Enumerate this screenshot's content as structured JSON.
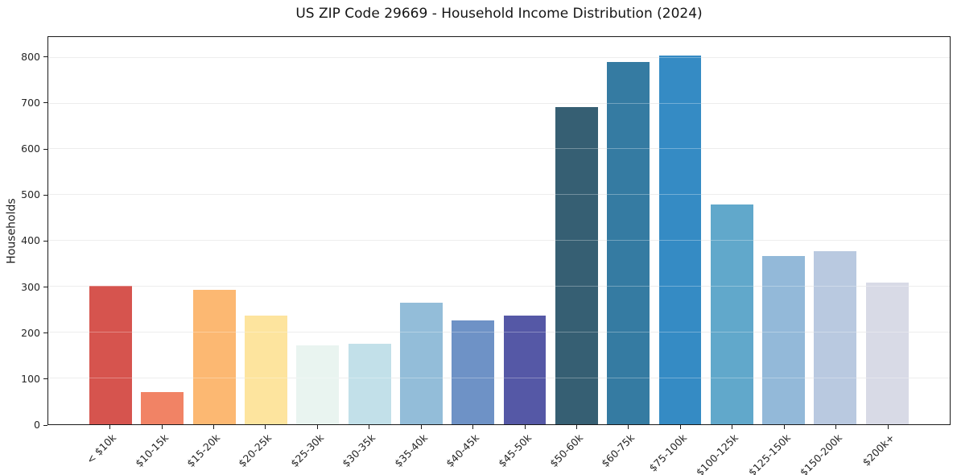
{
  "title": "US ZIP Code 29669 - Household Income Distribution (2024)",
  "colors": {
    "axis": "#1a1a1a",
    "grid": "#e6e6e6",
    "text": "#262626",
    "background": "#ffffff"
  },
  "chart_data": {
    "type": "bar",
    "title": "US ZIP Code 29669 - Household Income Distribution (2024)",
    "xlabel": "",
    "ylabel": "Households",
    "categories": [
      "< $10k",
      "$10-15k",
      "$15-20k",
      "$20-25k",
      "$25-30k",
      "$30-35k",
      "$35-40k",
      "$40-45k",
      "$45-50k",
      "$50-60k",
      "$60-75k",
      "$75-100k",
      "$100-125k",
      "$125-150k",
      "$150-200k",
      "$200k+"
    ],
    "values": [
      302,
      70,
      293,
      237,
      172,
      175,
      265,
      226,
      238,
      693,
      791,
      805,
      479,
      367,
      377,
      310
    ],
    "bar_colors": [
      "#d6544e",
      "#f18365",
      "#fcb872",
      "#fde49e",
      "#e9f4f0",
      "#c2e0e9",
      "#93bdd9",
      "#6e92c6",
      "#5558a6",
      "#365f73",
      "#357ba2",
      "#358bc4",
      "#61a8cb",
      "#93b9d9",
      "#b9c9e0",
      "#d8dae6"
    ],
    "yticks": [
      0,
      100,
      200,
      300,
      400,
      500,
      600,
      700,
      800
    ],
    "ylim": [
      0,
      845
    ],
    "grid": "horizontal",
    "legend": "none",
    "xtick_rotation": 45
  }
}
